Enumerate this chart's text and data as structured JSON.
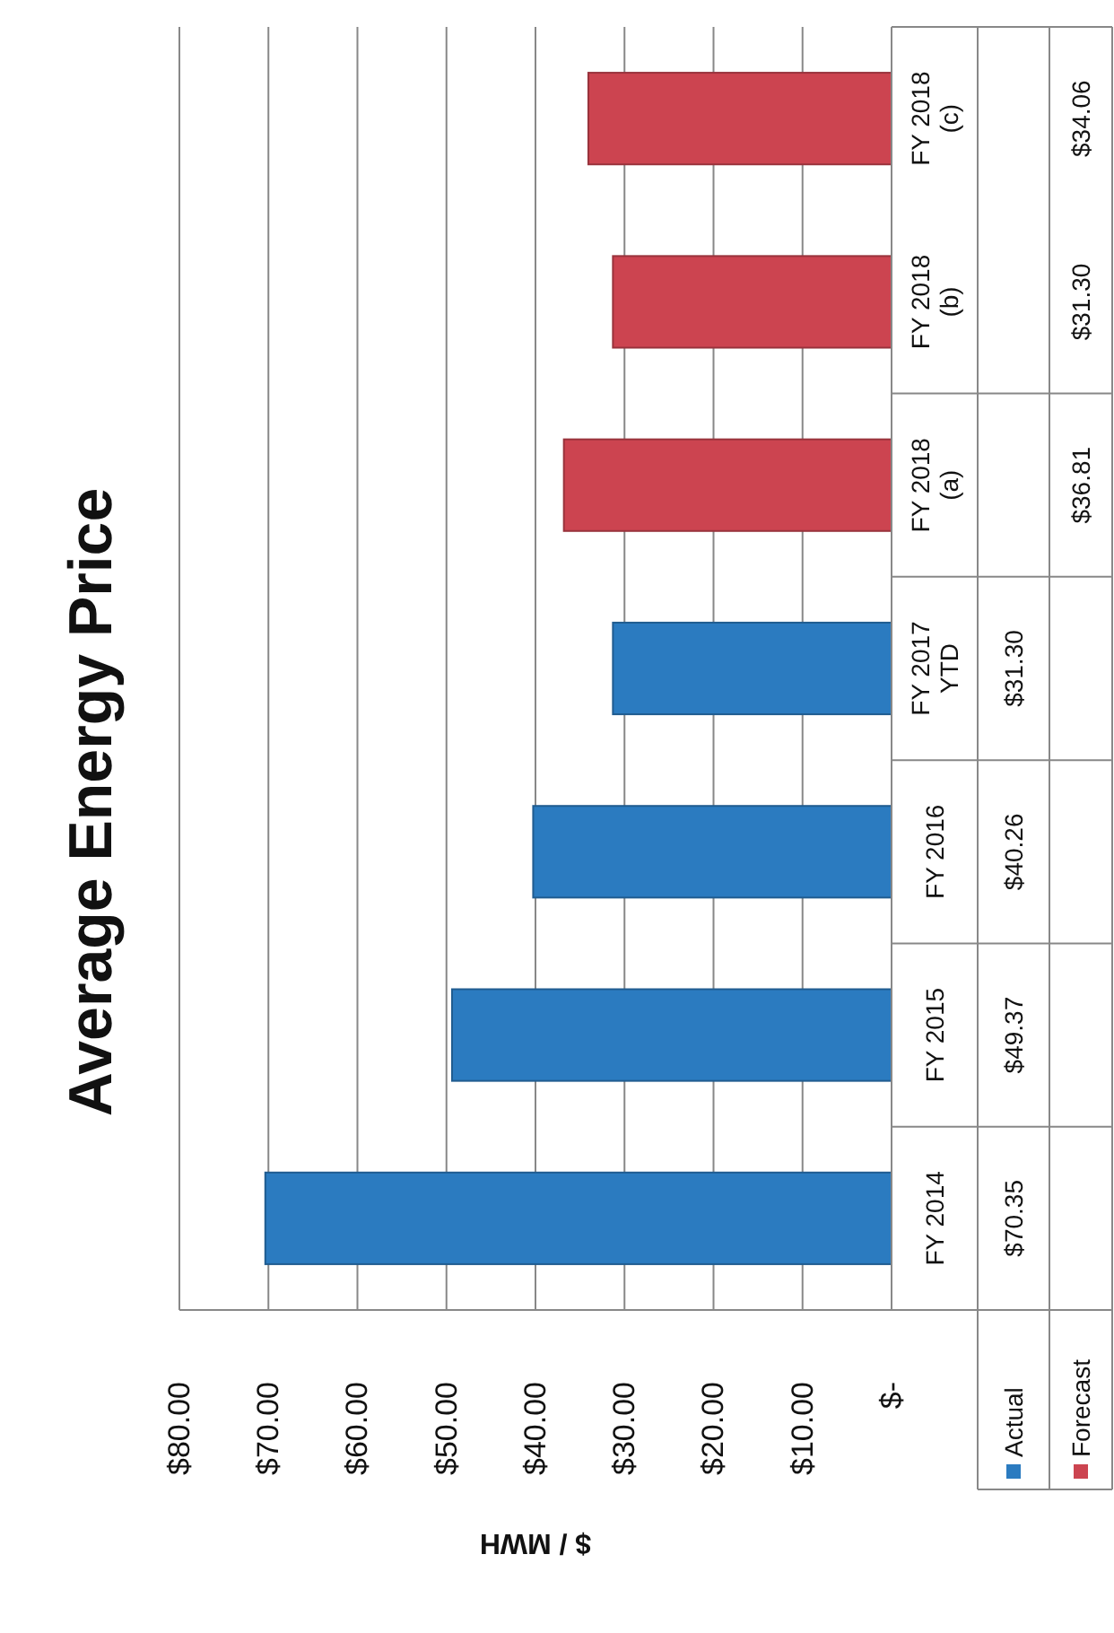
{
  "chart_data": {
    "type": "bar",
    "orientation": "horizontal",
    "title": "Average Energy Price",
    "xlabel": "$ / MWH",
    "categories": [
      "FY 2018 (c)",
      "FY 2018 (b)",
      "FY 2018 (a)",
      "FY 2017 YTD",
      "FY 2016",
      "FY 2015",
      "FY 2014"
    ],
    "series": [
      {
        "name": "Actual",
        "color": "#2b7bc0",
        "values": [
          null,
          null,
          null,
          31.3,
          40.26,
          49.37,
          70.35
        ],
        "value_labels": [
          null,
          null,
          null,
          "$31.30",
          "$40.26",
          "$49.37",
          "$70.35"
        ]
      },
      {
        "name": "Forecast",
        "color": "#cc4450",
        "values": [
          34.06,
          31.3,
          36.81,
          null,
          null,
          null,
          null
        ],
        "value_labels": [
          "$34.06",
          "$31.30",
          "$36.81",
          null,
          null,
          null,
          null
        ]
      }
    ],
    "stacked": true,
    "xlim": [
      80,
      0
    ],
    "xticks": [
      {
        "value": 80,
        "label": "$80.00"
      },
      {
        "value": 70,
        "label": "$70.00"
      },
      {
        "value": 60,
        "label": "$60.00"
      },
      {
        "value": 50,
        "label": "$50.00"
      },
      {
        "value": 40,
        "label": "$40.00"
      },
      {
        "value": 30,
        "label": "$30.00"
      },
      {
        "value": 20,
        "label": "$20.00"
      },
      {
        "value": 10,
        "label": "$10.00"
      },
      {
        "value": 0,
        "label": "$-"
      }
    ],
    "grid": "x",
    "legend": "bottom right"
  }
}
